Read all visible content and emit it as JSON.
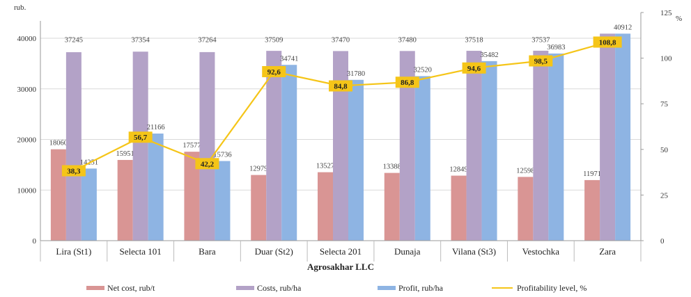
{
  "chart_data": {
    "type": "bar",
    "categories": [
      "Lira (St1)",
      "Selecta 101",
      "Bara",
      "Duar (St2)",
      "Selecta 201",
      "Dunaja",
      "Vilana (St3)",
      "Vestochka",
      "Zara"
    ],
    "series": [
      {
        "name": "Net cost, rub/t",
        "type": "bar",
        "axis": "left",
        "color": "#d99594",
        "values": [
          18060,
          15951,
          17577,
          12979,
          13527,
          13388,
          12849,
          12598,
          11971
        ]
      },
      {
        "name": "Costs, rub/ha",
        "type": "bar",
        "axis": "left",
        "color": "#b3a2c7",
        "values": [
          37245,
          37354,
          37264,
          37509,
          37470,
          37480,
          37518,
          37537,
          40912
        ]
      },
      {
        "name": "Profit, rub/ha",
        "type": "bar",
        "axis": "left",
        "color": "#8eb4e3",
        "values": [
          14251,
          21166,
          15736,
          34741,
          31780,
          32520,
          35482,
          36983,
          40912
        ]
      },
      {
        "name": "Profitability level, %",
        "type": "line",
        "axis": "right",
        "color": "#f5c518",
        "values": [
          38.3,
          56.7,
          42.2,
          92.6,
          84.8,
          86.8,
          94.6,
          98.5,
          108.8
        ],
        "labels": [
          "38,3",
          "56,7",
          "42,2",
          "92,6",
          "84,8",
          "86,8",
          "94,6",
          "98,5",
          "108,8"
        ]
      }
    ],
    "xlabel": "Agrosakhar LLC",
    "ylabel": "rub.",
    "y2label": "%",
    "ylim": [
      0,
      40000
    ],
    "yticks": [
      "0",
      "10000",
      "20000",
      "30000",
      "40000"
    ],
    "y2lim": [
      0,
      125
    ],
    "y2ticks": [
      "0",
      "25",
      "50",
      "75",
      "100",
      "125"
    ],
    "grid": true,
    "legend_position": "bottom",
    "colors": {
      "grid": "#d9d9d9",
      "point_label_bg": "#f5c518"
    }
  }
}
